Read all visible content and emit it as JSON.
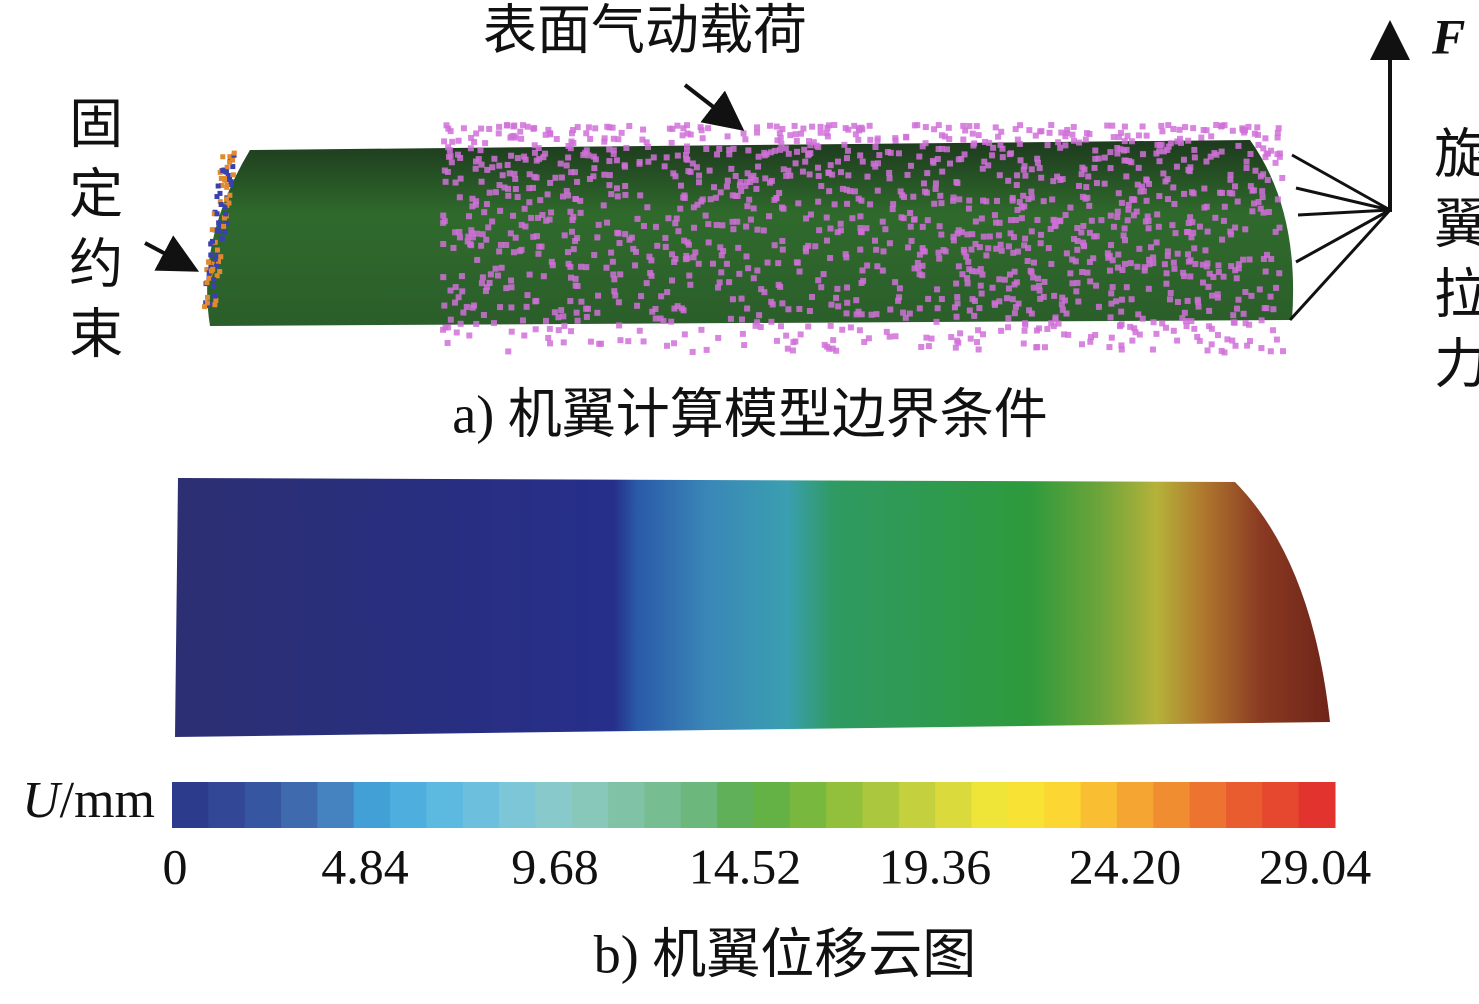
{
  "panel_a": {
    "surface_load_label": "表面气动载荷",
    "fixed_constraint_label": "固定约束",
    "force_symbol": "F",
    "rotor_pull_label": "旋翼拉力",
    "caption": "a) 机翼计算模型边界条件"
  },
  "panel_b": {
    "colorbar": {
      "variable": "U",
      "unit": "/mm",
      "range": [
        0,
        29.04
      ],
      "ticks": [
        0,
        4.84,
        9.68,
        14.52,
        19.36,
        {
          "value": 24.2,
          "label": "24.20"
        },
        29.04
      ]
    },
    "caption": "b) 机翼位移云图"
  }
}
